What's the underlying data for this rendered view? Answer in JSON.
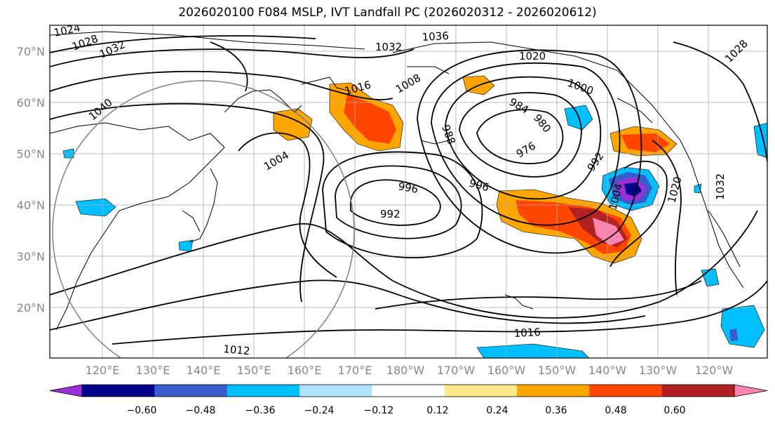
{
  "title": "2026020100 F084 MSLP, IVT Landfall PC (2026020312 - 2026020612)",
  "map": {
    "lat_labels": [
      "70°N",
      "60°N",
      "50°N",
      "40°N",
      "30°N",
      "20°N"
    ],
    "lon_labels": [
      "120°E",
      "130°E",
      "140°E",
      "150°E",
      "160°E",
      "170°E",
      "180°W",
      "170°W",
      "160°W",
      "150°W",
      "140°W",
      "130°W",
      "120°W"
    ],
    "isobar_labels": [
      "1024",
      "1028",
      "1032",
      "1040",
      "1036",
      "1032",
      "1020",
      "1016",
      "1008",
      "1000",
      "984",
      "980",
      "988",
      "976",
      "1004",
      "996",
      "996",
      "992",
      "992",
      "1004",
      "1020",
      "1028",
      "1032",
      "1016",
      "1012"
    ],
    "circle_color": "#808080"
  },
  "colorbar": {
    "colors": [
      "#9b30d9",
      "#00008b",
      "#3a5bcc",
      "#00bfff",
      "#b0e2ff",
      "#ffffff",
      "#ffe98a",
      "#ffa500",
      "#ff4500",
      "#b22222",
      "#ff85b0"
    ],
    "ticks": [
      "−0.60",
      "−0.48",
      "−0.36",
      "−0.24",
      "−0.12",
      "0.12",
      "0.24",
      "0.36",
      "0.48",
      "0.60"
    ]
  }
}
